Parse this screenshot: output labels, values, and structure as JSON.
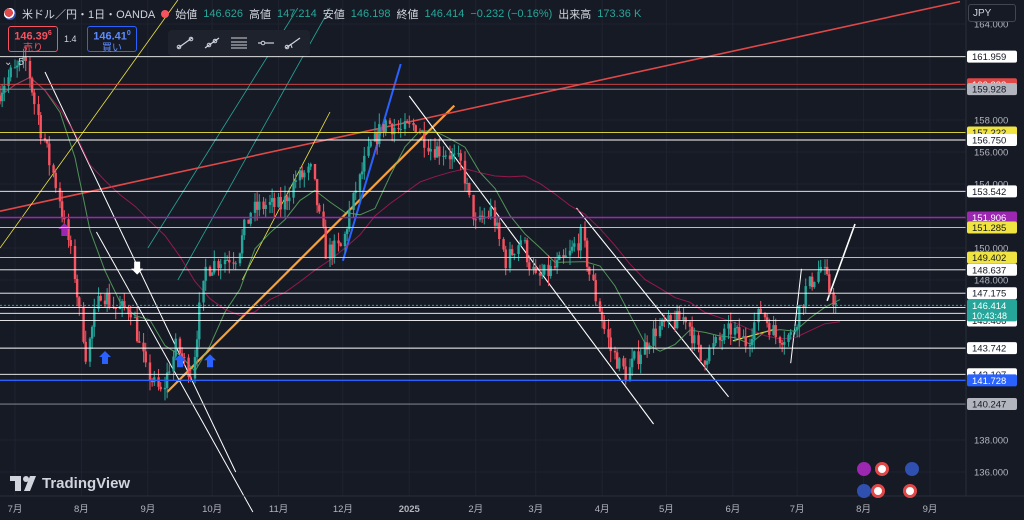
{
  "header": {
    "symbol": "米ドル／円・1日・OANDA",
    "open_label": "始値",
    "open_value": "146.626",
    "high_label": "高値",
    "high_value": "147.214",
    "low_label": "安値",
    "low_value": "146.198",
    "close_label": "終値",
    "close_value": "146.414",
    "change_value": "−0.232 (−0.16%)",
    "volume_label": "出来高",
    "volume_value": "173.36 K"
  },
  "trade": {
    "sell_price": "146.39",
    "sell_price_sup": "6",
    "sell_label": "売り",
    "spread": "1.4",
    "buy_price": "146.41",
    "buy_price_sup": "0",
    "buy_label": "買い"
  },
  "indicator_toggle": "5",
  "currency": "JPY",
  "brand": "TradingView",
  "colors": {
    "bg": "#161a25",
    "up": "#26a69a",
    "down": "#f7525f",
    "orange": "#f7a13a",
    "red": "#e04848",
    "white": "#ffffff",
    "yellow": "#f0e442",
    "purple": "#9c27b0",
    "blue": "#2962ff"
  },
  "icons": [
    "line-tool-icon",
    "ray-tool-icon",
    "fib-tool-icon",
    "hline-tool-icon",
    "trend-angle-icon",
    "tradingview-logo-icon"
  ],
  "chart_data": {
    "type": "candlestick",
    "title": "",
    "x_axis_labels": [
      "7月",
      "8月",
      "9月",
      "10月",
      "11月",
      "12月",
      "2025",
      "2月",
      "3月",
      "4月",
      "5月",
      "6月",
      "7月",
      "8月",
      "9月"
    ],
    "y_axis_ticks": [
      "164.000",
      "158.000",
      "156.000",
      "154.000",
      "150.000",
      "148.000",
      "138.000",
      "136.000"
    ],
    "ylim": [
      134.5,
      165.5
    ],
    "grid": true,
    "current_price": "146.414",
    "countdown": "10:43:48",
    "price_levels": [
      {
        "value": "161.959",
        "style": "white"
      },
      {
        "value": "160.233",
        "style": "red"
      },
      {
        "value": "159.928",
        "style": "grey"
      },
      {
        "value": "157.222",
        "style": "yellow"
      },
      {
        "value": "156.750",
        "style": "white"
      },
      {
        "value": "153.542",
        "style": "white"
      },
      {
        "value": "151.906",
        "style": "purple"
      },
      {
        "value": "151.285",
        "style": "yellow"
      },
      {
        "value": "149.402",
        "style": "yellow"
      },
      {
        "value": "148.637",
        "style": "white"
      },
      {
        "value": "147.175",
        "style": "white"
      },
      {
        "value": "146.286",
        "style": "white"
      },
      {
        "value": "145.915",
        "style": "white"
      },
      {
        "value": "145.466",
        "style": "white"
      },
      {
        "value": "143.742",
        "style": "white"
      },
      {
        "value": "142.107",
        "style": "white"
      },
      {
        "value": "141.728",
        "style": "blue"
      },
      {
        "value": "140.247",
        "style": "grey"
      }
    ],
    "close_path": [
      [
        "2024-06-24",
        159.5
      ],
      [
        "2024-07-01",
        160.9
      ],
      [
        "2024-07-08",
        161.6
      ],
      [
        "2024-07-15",
        157.4
      ],
      [
        "2024-07-22",
        154.0
      ],
      [
        "2024-07-29",
        149.6
      ],
      [
        "2024-08-05",
        143.4
      ],
      [
        "2024-08-12",
        147.3
      ],
      [
        "2024-08-19",
        146.2
      ],
      [
        "2024-08-26",
        146.2
      ],
      [
        "2024-09-02",
        142.3
      ],
      [
        "2024-09-09",
        140.9
      ],
      [
        "2024-09-16",
        143.8
      ],
      [
        "2024-09-23",
        142.2
      ],
      [
        "2024-09-30",
        148.7
      ],
      [
        "2024-10-07",
        149.3
      ],
      [
        "2024-10-14",
        149.5
      ],
      [
        "2024-10-21",
        152.3
      ],
      [
        "2024-10-28",
        152.7
      ],
      [
        "2024-11-04",
        152.6
      ],
      [
        "2024-11-11",
        154.3
      ],
      [
        "2024-11-18",
        154.8
      ],
      [
        "2024-11-25",
        149.8
      ],
      [
        "2024-12-02",
        150.0
      ],
      [
        "2024-12-09",
        153.7
      ],
      [
        "2024-12-16",
        156.4
      ],
      [
        "2024-12-23",
        157.9
      ],
      [
        "2024-12-30",
        157.3
      ],
      [
        "2025-01-06",
        157.7
      ],
      [
        "2025-01-13",
        156.3
      ],
      [
        "2025-01-20",
        156.0
      ],
      [
        "2025-01-27",
        155.2
      ],
      [
        "2025-02-03",
        151.4
      ],
      [
        "2025-02-10",
        152.3
      ],
      [
        "2025-02-17",
        149.2
      ],
      [
        "2025-02-24",
        150.6
      ],
      [
        "2025-03-03",
        148.0
      ],
      [
        "2025-03-10",
        148.6
      ],
      [
        "2025-03-17",
        149.3
      ],
      [
        "2025-03-24",
        150.7
      ],
      [
        "2025-03-31",
        146.9
      ],
      [
        "2025-04-07",
        143.6
      ],
      [
        "2025-04-14",
        142.1
      ],
      [
        "2025-04-21",
        143.6
      ],
      [
        "2025-04-28",
        144.9
      ],
      [
        "2025-05-05",
        145.3
      ],
      [
        "2025-05-12",
        145.7
      ],
      [
        "2025-05-19",
        143.0
      ],
      [
        "2025-05-26",
        144.0
      ],
      [
        "2025-06-02",
        144.9
      ],
      [
        "2025-06-09",
        144.1
      ],
      [
        "2025-06-16",
        146.1
      ],
      [
        "2025-06-23",
        144.5
      ],
      [
        "2025-06-30",
        144.5
      ],
      [
        "2025-07-07",
        147.4
      ],
      [
        "2025-07-14",
        148.8
      ],
      [
        "2025-07-21",
        146.4
      ]
    ],
    "date_range": [
      "2024-06-24",
      "2025-09-15"
    ]
  }
}
